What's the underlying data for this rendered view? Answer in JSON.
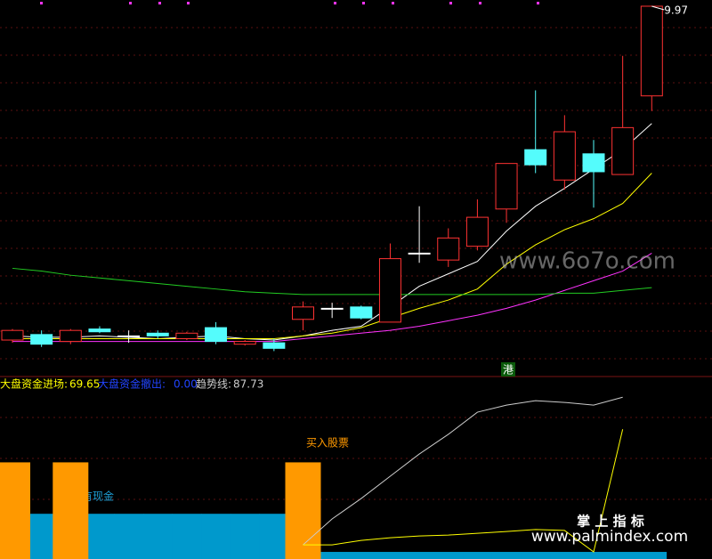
{
  "chart_data": [
    {
      "type": "candlestick",
      "open": [
        7.55,
        7.59,
        7.54,
        7.63,
        7.58,
        7.6,
        7.56,
        7.64,
        7.52,
        7.53,
        7.7,
        7.78,
        7.79,
        7.68,
        8.18,
        8.13,
        8.23,
        8.5,
        8.93,
        8.71,
        8.9,
        8.75,
        9.32
      ],
      "high": [
        7.63,
        7.62,
        7.63,
        7.65,
        7.62,
        7.62,
        7.61,
        7.68,
        7.55,
        7.56,
        7.83,
        7.82,
        7.8,
        8.25,
        8.52,
        8.36,
        8.57,
        8.83,
        9.36,
        9.18,
        9.0,
        9.61,
        9.97
      ],
      "low": [
        7.53,
        7.5,
        7.52,
        7.6,
        7.53,
        7.56,
        7.55,
        7.52,
        7.51,
        7.47,
        7.62,
        7.71,
        7.7,
        7.68,
        8.11,
        8.08,
        8.2,
        8.4,
        8.76,
        8.64,
        8.51,
        8.75,
        9.21
      ],
      "close": [
        7.62,
        7.52,
        7.62,
        7.61,
        7.58,
        7.58,
        7.6,
        7.54,
        7.54,
        7.49,
        7.79,
        7.78,
        7.71,
        8.14,
        8.18,
        8.29,
        8.44,
        8.83,
        8.82,
        9.06,
        8.77,
        9.09,
        9.97
      ],
      "up_color": "#ff3232",
      "down_color": "#54fcfc",
      "flat_color": "#ffffff",
      "series": [
        {
          "color": "#ffffff",
          "values": [
            7.58,
            7.57,
            7.57,
            7.58,
            7.57,
            7.56,
            7.57,
            7.58,
            7.56,
            7.55,
            7.58,
            7.62,
            7.65,
            7.79,
            7.94,
            8.03,
            8.12,
            8.34,
            8.52,
            8.65,
            8.79,
            8.93,
            9.12
          ]
        },
        {
          "color": "#ffff00",
          "values": [
            7.56,
            7.56,
            7.56,
            7.56,
            7.56,
            7.56,
            7.56,
            7.56,
            7.56,
            7.56,
            7.58,
            7.6,
            7.64,
            7.71,
            7.78,
            7.84,
            7.92,
            8.1,
            8.24,
            8.35,
            8.43,
            8.54,
            8.76
          ]
        },
        {
          "color": "#ff33ff",
          "values": [
            7.54,
            7.54,
            7.54,
            7.54,
            7.54,
            7.54,
            7.54,
            7.54,
            7.54,
            7.54,
            7.56,
            7.58,
            7.6,
            7.62,
            7.65,
            7.69,
            7.73,
            7.78,
            7.84,
            7.91,
            7.98,
            8.05,
            8.18
          ]
        },
        {
          "color": "#22cc22",
          "values": [
            8.07,
            8.05,
            8.02,
            8.0,
            7.98,
            7.96,
            7.94,
            7.92,
            7.9,
            7.89,
            7.88,
            7.88,
            7.88,
            7.88,
            7.88,
            7.88,
            7.88,
            7.88,
            7.88,
            7.89,
            7.89,
            7.91,
            7.93
          ]
        }
      ],
      "ylim": [
        7.305,
        10.015
      ],
      "tag": "港",
      "watermark": "www.6o7o.com"
    },
    {
      "type": "bar-line",
      "legend": [
        "大盘资金进场:",
        "大盘资金撤出:",
        "趋势线:"
      ],
      "legend_values": [
        "69.65",
        "0.00",
        "87.73"
      ],
      "bars": [
        {
          "color": "#ff9900",
          "values": [
            51,
            null,
            51,
            null,
            null,
            null,
            null,
            null,
            null,
            null,
            51,
            null,
            null,
            null,
            null,
            null,
            null,
            null,
            null,
            null,
            null,
            null,
            null
          ]
        },
        {
          "color": "#0099cc",
          "values": [
            null,
            22,
            null,
            22,
            22,
            22,
            22,
            22,
            22,
            22,
            null,
            0,
            0,
            0,
            0,
            0,
            0,
            0,
            0,
            0,
            0,
            0,
            0
          ]
        }
      ],
      "series": [
        {
          "name": "趋势线",
          "color": "#cccccc",
          "values": [
            null,
            null,
            null,
            null,
            null,
            null,
            null,
            null,
            null,
            null,
            4.5,
            19.1,
            30.6,
            43.2,
            55.7,
            66.8,
            79.3,
            83.3,
            85.8,
            84.8,
            83.3,
            87.73,
            null
          ]
        },
        {
          "name": "大盘资金进场",
          "color": "#ffff00",
          "values": [
            null,
            null,
            null,
            null,
            null,
            null,
            null,
            null,
            null,
            null,
            4.5,
            4.5,
            7.0,
            8.5,
            9.5,
            10.0,
            11.0,
            12.0,
            13.1,
            12.6,
            0.5,
            69.65,
            null
          ]
        }
      ],
      "ylim": [
        -3.5,
        98.9
      ],
      "annotations": [
        "买入股票",
        "持有现金"
      ],
      "watermark": [
        "掌 上 指 标",
        "www.palmindex.com"
      ]
    }
  ]
}
